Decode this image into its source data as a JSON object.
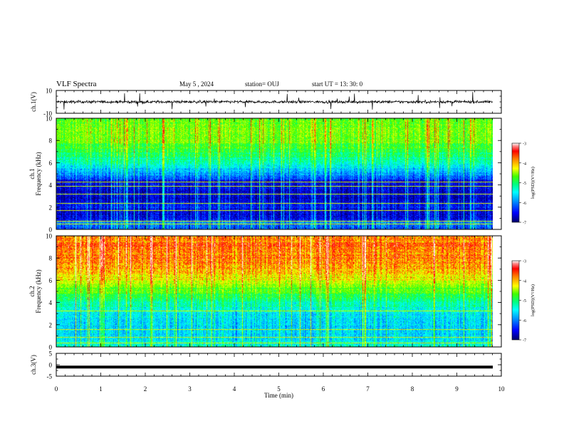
{
  "header": {
    "title": "VLF Spectra",
    "date": "May 5 , 2024",
    "station": "station= OUJ",
    "start": "start  UT =  13: 30: 0"
  },
  "chart_data": [
    {
      "type": "line",
      "panel": "ch1-waveform",
      "ylabel": "ch.1(V)",
      "ylim": [
        -10,
        10
      ],
      "yticks": [
        "10",
        "-10"
      ],
      "xlim": [
        0,
        10
      ],
      "description_level": 0,
      "noise_amplitude": 1.2
    },
    {
      "type": "heatmap",
      "panel": "ch1-spectrogram",
      "ylabel": "ch.1\nFrequency  (kHz)",
      "ylim": [
        0,
        10
      ],
      "yticks": [
        "0",
        "2",
        "4",
        "6",
        "8",
        "10"
      ],
      "xlim": [
        0,
        9.8
      ],
      "colorbar": {
        "label": "log(PSD)(V²/Hz)",
        "ticks": [
          "-3",
          "-4",
          "-5",
          "-6",
          "-7"
        ],
        "range": [
          -7,
          -3
        ]
      },
      "profile": [
        [
          0.0,
          -6.3
        ],
        [
          0.6,
          -6.0
        ],
        [
          1.0,
          -6.5
        ],
        [
          1.6,
          -6.6
        ],
        [
          2.0,
          -6.4
        ],
        [
          2.7,
          -6.7
        ],
        [
          3.3,
          -6.6
        ],
        [
          4.3,
          -6.6
        ],
        [
          5.0,
          -5.9
        ],
        [
          6.0,
          -5.3
        ],
        [
          7.0,
          -4.9
        ],
        [
          8.0,
          -4.6
        ],
        [
          9.0,
          -4.5
        ],
        [
          10.0,
          -4.6
        ]
      ],
      "lines_khz": [
        0.5,
        0.8,
        1.7,
        2.4,
        3.2,
        3.9,
        4.3
      ]
    },
    {
      "type": "heatmap",
      "panel": "ch2-spectrogram",
      "ylabel": "ch.2\nFrequency  (kHz)",
      "ylim": [
        0,
        10
      ],
      "yticks": [
        "0",
        "2",
        "4",
        "6",
        "8",
        "10"
      ],
      "xlim": [
        0,
        9.8
      ],
      "colorbar": {
        "label": "log(PSD)(V²/Hz)",
        "ticks": [
          "-3",
          "-4",
          "-5",
          "-6",
          "-7"
        ],
        "range": [
          -7,
          -3
        ]
      },
      "profile": [
        [
          0.0,
          -5.3
        ],
        [
          1.0,
          -5.6
        ],
        [
          2.0,
          -5.6
        ],
        [
          3.0,
          -5.5
        ],
        [
          4.0,
          -5.2
        ],
        [
          5.0,
          -4.7
        ],
        [
          6.0,
          -4.2
        ],
        [
          7.0,
          -3.9
        ],
        [
          8.0,
          -3.75
        ],
        [
          9.0,
          -3.7
        ],
        [
          10.0,
          -3.75
        ]
      ],
      "lines_khz": [
        0.4,
        0.9,
        1.6,
        3.3
      ]
    },
    {
      "type": "line",
      "panel": "ch3-waveform",
      "ylabel": "ch.3(V)",
      "ylim": [
        -5,
        5
      ],
      "yticks": [
        "5",
        "0",
        "-5"
      ],
      "xlim": [
        0,
        10
      ],
      "level": -1.0,
      "xlabel": "Time  (min)",
      "xticks": [
        "0",
        "1",
        "2",
        "3",
        "4",
        "5",
        "6",
        "7",
        "8",
        "9",
        "10"
      ]
    }
  ],
  "colors": {
    "frame": "#000000",
    "colormap": [
      "#000068",
      "#0000ff",
      "#00a0ff",
      "#00ffff",
      "#00ff80",
      "#40ff00",
      "#c8ff00",
      "#ffff00",
      "#ff8000",
      "#ff0000",
      "#ff8080",
      "#ffffff"
    ]
  }
}
